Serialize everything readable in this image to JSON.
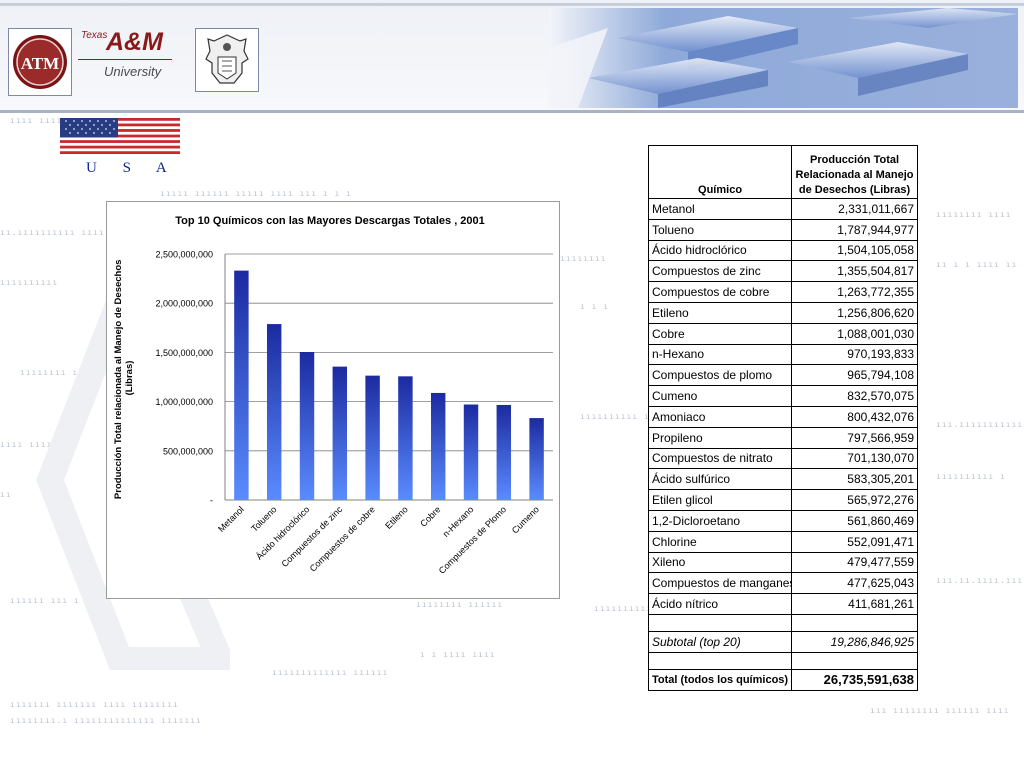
{
  "header": {
    "tamu_brand_small": "Texas",
    "tamu_brand": "A&M",
    "tamu_sub": "University",
    "logo_letters": "ATM"
  },
  "country": {
    "label": "U S A"
  },
  "colors": {
    "bar_top": "#1c2aa0",
    "bar_bottom": "#5a8cff",
    "grid": "#808080",
    "table_border": "#000000",
    "usa_text": "#0a2a8a",
    "tamu_maroon": "#8a1a1a"
  },
  "chart_data": {
    "type": "bar",
    "title": "Top 10 Químicos con las Mayores Descargas Totales , 2001",
    "ylabel": "Producción Total relacionada al Manejo de Desechos (Libras)",
    "xlabel": "",
    "categories": [
      "Metanol",
      "Tolueno",
      "Ácido hidroclórico",
      "Compuestos de zinc",
      "Compuestos de cobre",
      "Etileno",
      "Cobre",
      "n-Hexano",
      "Compuestos de Plomo",
      "Cumeno"
    ],
    "values": [
      2331011667,
      1787944977,
      1504105058,
      1355504817,
      1263772355,
      1256806620,
      1088001030,
      970193833,
      965794108,
      832570075
    ],
    "ylim": [
      0,
      2500000000
    ],
    "yticks": [
      0,
      500000000,
      1000000000,
      1500000000,
      2000000000,
      2500000000
    ],
    "ytick_labels": [
      "-",
      "500,000,000",
      "1,000,000,000",
      "1,500,000,000",
      "2,000,000,000",
      "2,500,000,000"
    ],
    "grid": true,
    "legend": "none"
  },
  "table": {
    "col_chemical": "Químico",
    "col_production": "Producción Total Relacionada al Manejo de Desechos (Libras)",
    "rows": [
      {
        "name": "Metanol",
        "value": "2,331,011,667"
      },
      {
        "name": "Tolueno",
        "value": "1,787,944,977"
      },
      {
        "name": "Ácido hidroclórico",
        "value": "1,504,105,058"
      },
      {
        "name": "Compuestos de zinc",
        "value": "1,355,504,817"
      },
      {
        "name": "Compuestos de cobre",
        "value": "1,263,772,355"
      },
      {
        "name": "Etileno",
        "value": "1,256,806,620"
      },
      {
        "name": "Cobre",
        "value": "1,088,001,030"
      },
      {
        "name": "n-Hexano",
        "value": "970,193,833"
      },
      {
        "name": "Compuestos de plomo",
        "value": "965,794,108"
      },
      {
        "name": "Cumeno",
        "value": "832,570,075"
      },
      {
        "name": "Amoniaco",
        "value": "800,432,076"
      },
      {
        "name": "Propileno",
        "value": "797,566,959"
      },
      {
        "name": "Compuestos de nitrato",
        "value": "701,130,070"
      },
      {
        "name": "Ácido sulfúrico",
        "value": "583,305,201"
      },
      {
        "name": "Etilen glicol",
        "value": "565,972,276"
      },
      {
        "name": "1,2-Dicloroetano",
        "value": "561,860,469"
      },
      {
        "name": "Chlorine",
        "value": "552,091,471"
      },
      {
        "name": "Xileno",
        "value": "479,477,559"
      },
      {
        "name": "Compuestos de manganeso",
        "value": "477,625,043"
      },
      {
        "name": "Ácido nítrico",
        "value": "411,681,261"
      }
    ],
    "subtotal_label": "Subtotal (top 20)",
    "subtotal_value": "19,286,846,925",
    "total_label": "Total (todos los químicos)",
    "total_value": "26,735,591,638"
  }
}
